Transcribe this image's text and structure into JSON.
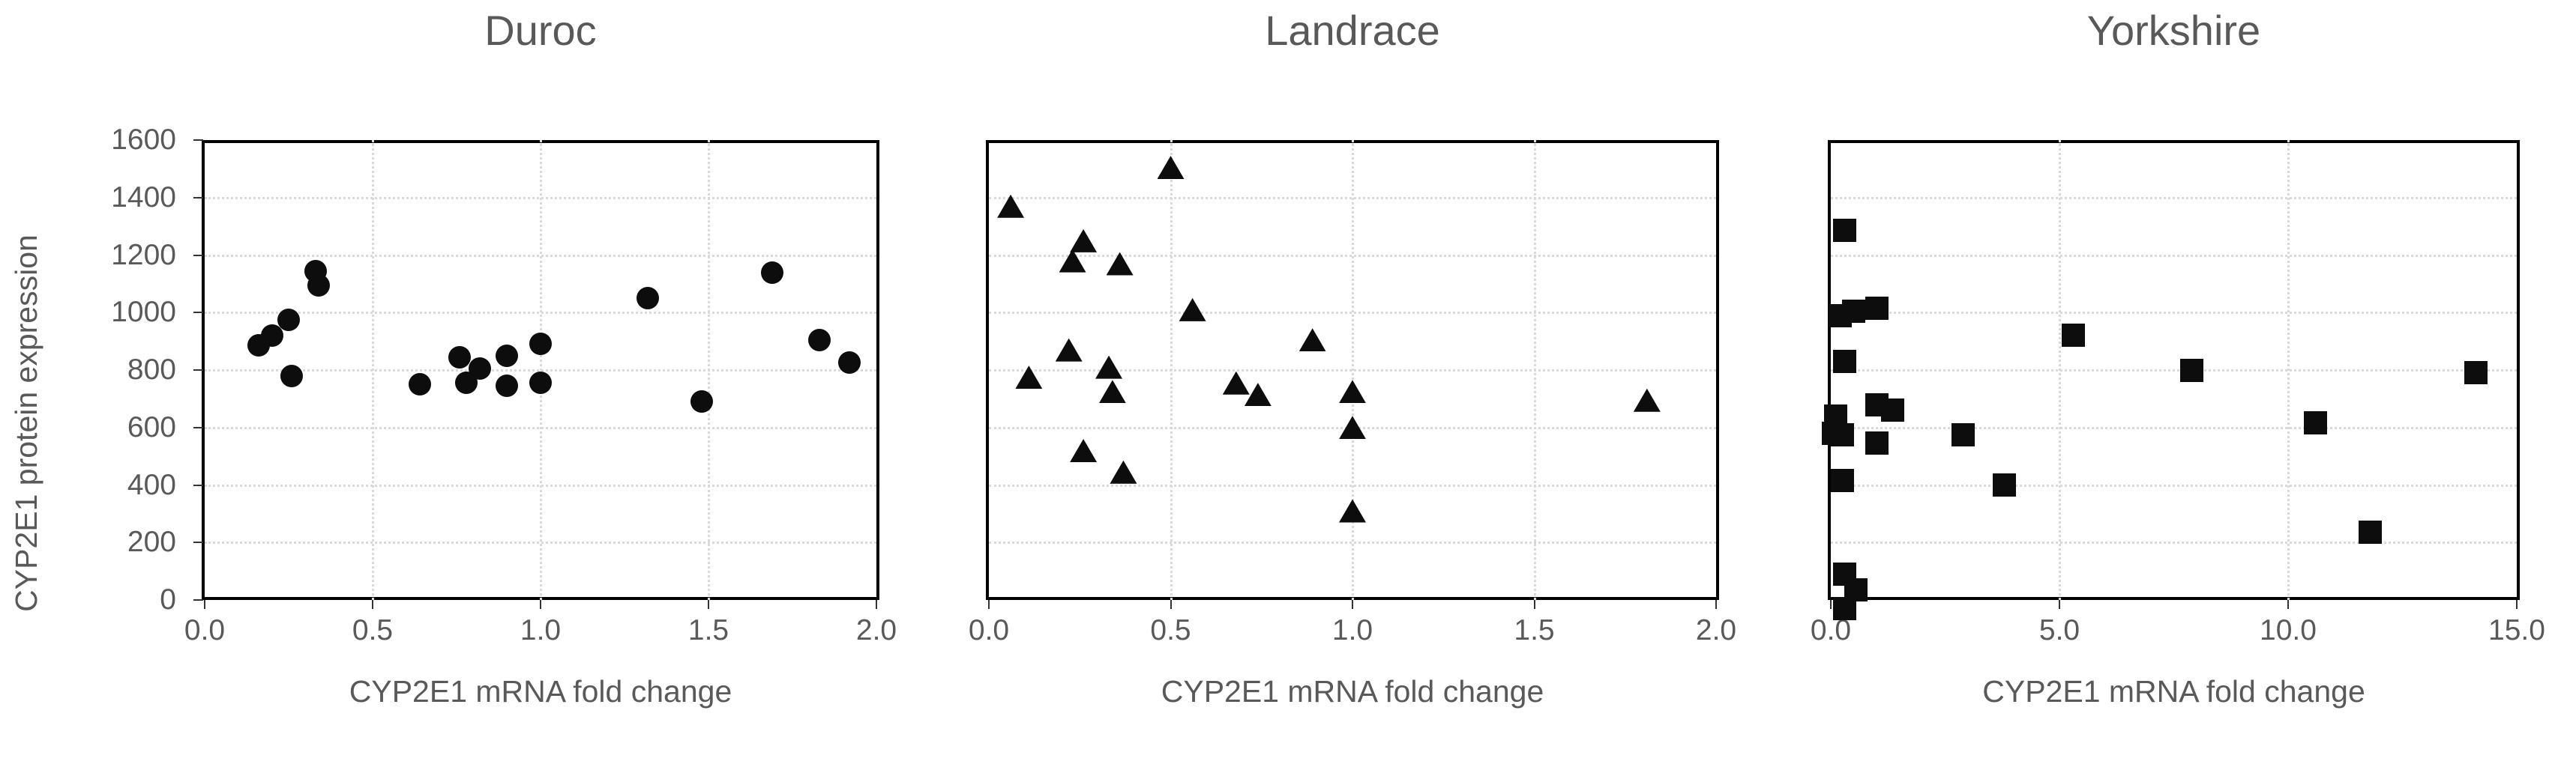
{
  "shared": {
    "y_axis_title": "CYP2E1 protein expression",
    "colors": {
      "marker": "#0d0d0d",
      "text": "#595959",
      "gridline": "#d9d9d9",
      "frame": "#000000"
    }
  },
  "chart_data": [
    {
      "type": "scatter",
      "title": "Duroc",
      "marker": "circle",
      "xlabel": "CYP2E1 mRNA fold change",
      "ylabel": "CYP2E1 protein expression",
      "xlim": [
        0,
        2
      ],
      "ylim": [
        0,
        1600
      ],
      "grid": true,
      "legend": "none",
      "xticks": [
        "0.0",
        "0.5",
        "1.0",
        "1.5",
        "2.0"
      ],
      "yticks": [
        "0",
        "200",
        "400",
        "600",
        "800",
        "1000",
        "1200",
        "1400",
        "1600"
      ],
      "points": [
        [
          0.16,
          885
        ],
        [
          0.2,
          920
        ],
        [
          0.25,
          975
        ],
        [
          0.33,
          1145
        ],
        [
          0.34,
          1095
        ],
        [
          0.26,
          780
        ],
        [
          0.64,
          750
        ],
        [
          0.76,
          845
        ],
        [
          0.78,
          755
        ],
        [
          0.82,
          805
        ],
        [
          0.9,
          850
        ],
        [
          0.9,
          745
        ],
        [
          1.0,
          890
        ],
        [
          1.0,
          755
        ],
        [
          1.32,
          1050
        ],
        [
          1.48,
          690
        ],
        [
          1.69,
          1140
        ],
        [
          1.83,
          905
        ],
        [
          1.92,
          825
        ]
      ]
    },
    {
      "type": "scatter",
      "title": "Landrace",
      "marker": "triangle",
      "xlabel": "CYP2E1 mRNA fold change",
      "ylabel": "CYP2E1 protein expression",
      "xlim": [
        0,
        2
      ],
      "ylim": [
        0,
        1600
      ],
      "grid": true,
      "legend": "none",
      "xticks": [
        "0.0",
        "0.5",
        "1.0",
        "1.5",
        "2.0"
      ],
      "yticks": [
        "0",
        "200",
        "400",
        "600",
        "800",
        "1000",
        "1200",
        "1400",
        "1600"
      ],
      "points": [
        [
          0.06,
          1370
        ],
        [
          0.11,
          775
        ],
        [
          0.22,
          870
        ],
        [
          0.23,
          1180
        ],
        [
          0.26,
          1250
        ],
        [
          0.26,
          520
        ],
        [
          0.33,
          810
        ],
        [
          0.34,
          725
        ],
        [
          0.36,
          1170
        ],
        [
          0.37,
          445
        ],
        [
          0.5,
          1505
        ],
        [
          0.56,
          1010
        ],
        [
          0.68,
          755
        ],
        [
          0.74,
          715
        ],
        [
          0.89,
          905
        ],
        [
          1.0,
          725
        ],
        [
          1.0,
          600
        ],
        [
          1.0,
          310
        ],
        [
          1.81,
          695
        ]
      ]
    },
    {
      "type": "scatter",
      "title": "Yorkshire",
      "marker": "square",
      "xlabel": "CYP2E1 mRNA fold change",
      "ylabel": "CYP2E1 protein expression",
      "xlim": [
        0,
        15
      ],
      "ylim": [
        0,
        1600
      ],
      "grid": true,
      "legend": "none",
      "xticks": [
        "0.0",
        "5.0",
        "10.0",
        "15.0"
      ],
      "yticks": [
        "0",
        "200",
        "400",
        "600",
        "800",
        "1000",
        "1200",
        "1400",
        "1600"
      ],
      "points": [
        [
          0.05,
          580
        ],
        [
          0.1,
          640
        ],
        [
          0.2,
          990
        ],
        [
          0.25,
          575
        ],
        [
          0.25,
          415
        ],
        [
          0.3,
          1285
        ],
        [
          0.3,
          830
        ],
        [
          0.3,
          90
        ],
        [
          0.3,
          -30
        ],
        [
          0.5,
          1005
        ],
        [
          0.55,
          35
        ],
        [
          1.0,
          1015
        ],
        [
          1.0,
          680
        ],
        [
          1.0,
          545
        ],
        [
          1.35,
          660
        ],
        [
          2.9,
          575
        ],
        [
          3.8,
          400
        ],
        [
          5.3,
          920
        ],
        [
          7.9,
          800
        ],
        [
          10.6,
          615
        ],
        [
          11.8,
          235
        ],
        [
          14.1,
          790
        ]
      ]
    }
  ]
}
